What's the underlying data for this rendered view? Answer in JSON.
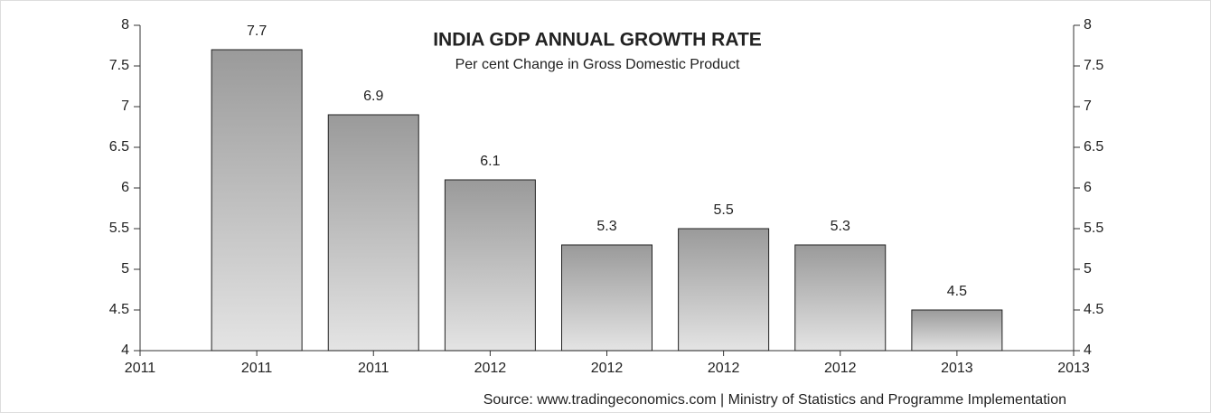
{
  "chart_data": {
    "type": "bar",
    "title": "INDIA GDP ANNUAL GROWTH RATE",
    "subtitle": "Per cent Change in Gross Domestic Product",
    "source": "Source: www.tradingeconomics.com | Ministry of Statistics and Programme Implementation",
    "categories": [
      "2011",
      "2011",
      "2011",
      "2012",
      "2012",
      "2012",
      "2012",
      "2013",
      "2013"
    ],
    "values": [
      null,
      7.7,
      6.9,
      6.1,
      5.3,
      5.5,
      5.3,
      4.5,
      null
    ],
    "color": "#9a9a9a",
    "ylim": [
      4,
      8
    ],
    "yticks": [
      4,
      4.5,
      5,
      5.5,
      6,
      6.5,
      7,
      7.5,
      8
    ],
    "y2lim": [
      4,
      8
    ],
    "y2ticks": [
      4,
      4.5,
      5,
      5.5,
      6,
      6.5,
      7,
      7.5,
      8
    ]
  }
}
